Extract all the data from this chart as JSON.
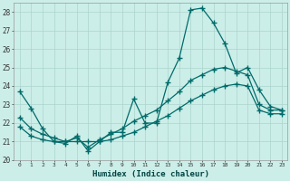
{
  "xlabel": "Humidex (Indice chaleur)",
  "xlim": [
    -0.5,
    23.5
  ],
  "ylim": [
    20,
    28.5
  ],
  "xticks": [
    0,
    1,
    2,
    3,
    4,
    5,
    6,
    7,
    8,
    9,
    10,
    11,
    12,
    13,
    14,
    15,
    16,
    17,
    18,
    19,
    20,
    21,
    22,
    23
  ],
  "yticks": [
    20,
    21,
    22,
    23,
    24,
    25,
    26,
    27,
    28
  ],
  "bg_color": "#cceee8",
  "line_color": "#006b6b",
  "grid_color": "#aad4cc",
  "series1_x": [
    0,
    1,
    2,
    3,
    4,
    5,
    6,
    7,
    8,
    9,
    10,
    11,
    12,
    13,
    14,
    15,
    16,
    17,
    18,
    19,
    20,
    21,
    22,
    23
  ],
  "series1_y": [
    23.7,
    22.8,
    21.7,
    21.0,
    20.9,
    21.3,
    20.5,
    21.0,
    21.5,
    21.5,
    23.3,
    22.0,
    22.0,
    24.2,
    25.5,
    28.1,
    28.2,
    27.4,
    26.3,
    24.7,
    25.0,
    23.8,
    22.9,
    22.7
  ],
  "series2_x": [
    0,
    1,
    2,
    3,
    4,
    5,
    6,
    7,
    8,
    9,
    10,
    11,
    12,
    13,
    14,
    15,
    16,
    17,
    18,
    19,
    20,
    21,
    22,
    23
  ],
  "series2_y": [
    22.3,
    21.7,
    21.4,
    21.2,
    21.0,
    21.2,
    20.7,
    21.1,
    21.4,
    21.7,
    22.1,
    22.4,
    22.7,
    23.2,
    23.7,
    24.3,
    24.6,
    24.9,
    25.0,
    24.8,
    24.6,
    23.0,
    22.7,
    22.7
  ],
  "series3_x": [
    0,
    1,
    2,
    3,
    4,
    5,
    6,
    7,
    8,
    9,
    10,
    11,
    12,
    13,
    14,
    15,
    16,
    17,
    18,
    19,
    20,
    21,
    22,
    23
  ],
  "series3_y": [
    21.8,
    21.3,
    21.1,
    21.0,
    21.0,
    21.0,
    21.0,
    21.0,
    21.1,
    21.3,
    21.5,
    21.8,
    22.1,
    22.4,
    22.8,
    23.2,
    23.5,
    23.8,
    24.0,
    24.1,
    24.0,
    22.7,
    22.5,
    22.5
  ]
}
